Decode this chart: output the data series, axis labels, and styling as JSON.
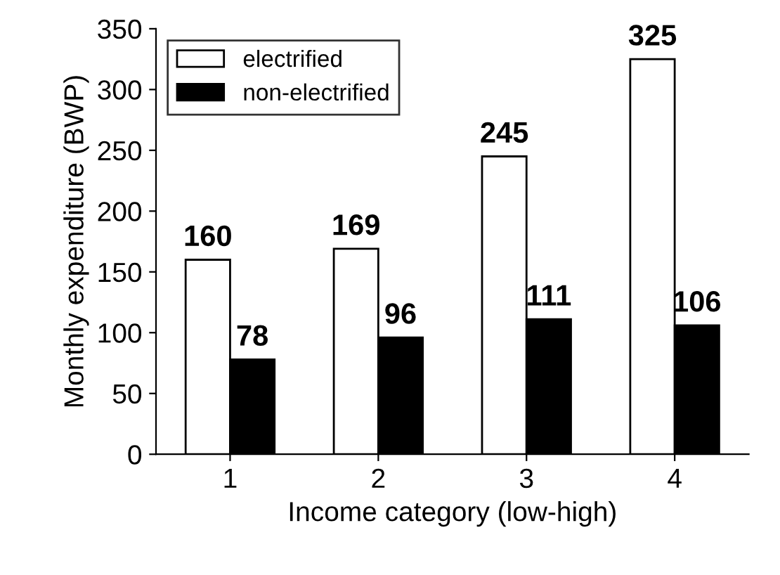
{
  "chart_data": {
    "type": "bar",
    "xlabel": "Income category (low-high)",
    "ylabel": "Monthly expenditure (BWP)",
    "categories": [
      "1",
      "2",
      "3",
      "4"
    ],
    "series": [
      {
        "name": "electrified",
        "color": "#ffffff",
        "values": [
          160,
          169,
          245,
          325
        ]
      },
      {
        "name": "non-electrified",
        "color": "#000000",
        "values": [
          78,
          96,
          111,
          106
        ]
      }
    ],
    "ylim": [
      0,
      350
    ],
    "yticks": [
      0,
      50,
      100,
      150,
      200,
      250,
      300,
      350
    ],
    "grid": false,
    "legend": "top left",
    "data_labels": true
  }
}
